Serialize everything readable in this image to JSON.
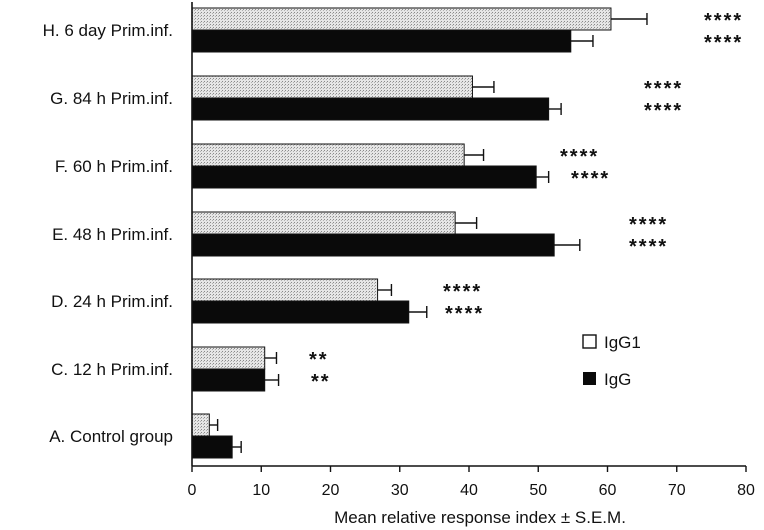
{
  "chart_data": {
    "type": "bar",
    "orientation": "horizontal",
    "xlabel": "Mean relative response index ± S.E.M.",
    "xlim": [
      0,
      80
    ],
    "xticks": [
      0,
      10,
      20,
      30,
      40,
      50,
      60,
      70,
      80
    ],
    "grid": false,
    "legend_placement": "right",
    "categories": [
      "H. 6 day Prim.inf.",
      "G. 84 h Prim.inf.",
      "F. 60 h Prim.inf.",
      "E. 48 h Prim.inf.",
      "D. 24 h Prim.inf.",
      "C. 12 h Prim.inf.",
      "A. Control group"
    ],
    "series": [
      {
        "name": "IgG1",
        "style": "stippled",
        "values": [
          60.5,
          40.5,
          39.3,
          38.0,
          26.8,
          10.5,
          2.5
        ],
        "errors": [
          5.2,
          3.1,
          2.8,
          3.1,
          2.0,
          1.7,
          1.2
        ],
        "significance": [
          "****",
          "****",
          "****",
          "****",
          "****",
          "**",
          ""
        ]
      },
      {
        "name": "IgG",
        "style": "solid",
        "values": [
          54.7,
          51.5,
          49.7,
          52.3,
          31.3,
          10.5,
          5.8
        ],
        "errors": [
          3.2,
          1.8,
          1.8,
          3.7,
          2.6,
          2.0,
          1.3
        ],
        "significance": [
          "****",
          "****",
          "****",
          "****",
          "****",
          "**",
          ""
        ]
      }
    ],
    "colors": {
      "IgG": "#0a0a0a",
      "IgG1": "#d6d6d6",
      "axis": "#111111"
    }
  }
}
